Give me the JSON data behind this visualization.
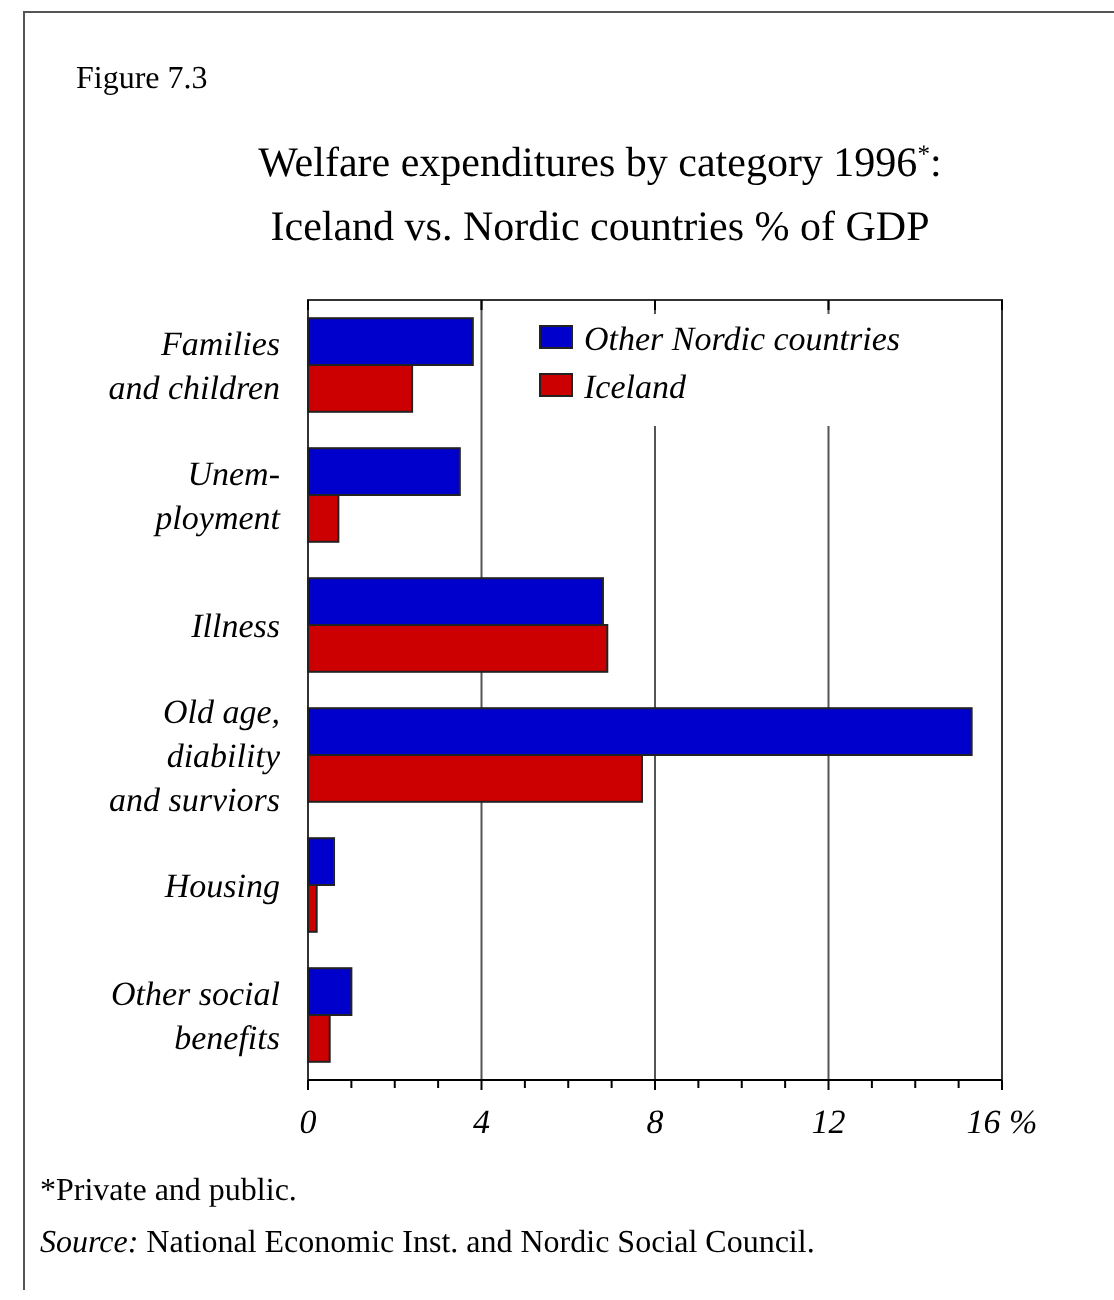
{
  "chart_data": {
    "type": "bar",
    "orientation": "horizontal",
    "title": "Welfare expenditures by category 1996$^{*}$:\nIceland vs. Nordic countries % of GDP",
    "categories": [
      "Families\nand children",
      "Unem-\nployment",
      "Illness",
      "Old age,\ndiability\nand surviors",
      "Housing",
      "Other social\nbenefits"
    ],
    "series": [
      {
        "name": "Other Nordic countries",
        "color": "#0000cc",
        "values": [
          3.8,
          3.5,
          6.8,
          15.3,
          0.6,
          1.0
        ]
      },
      {
        "name": "Iceland",
        "color": "#cc0000",
        "values": [
          2.4,
          0.7,
          6.9,
          7.7,
          0.2,
          0.5
        ]
      }
    ],
    "xlim": [
      0,
      16
    ],
    "xticks": [
      0,
      {
        "value": 1,
        "label": null
      },
      {
        "value": 2,
        "label": null
      },
      {
        "value": 3,
        "label": null
      },
      4,
      {
        "value": 5,
        "label": null
      },
      {
        "value": 6,
        "label": null
      },
      {
        "value": 7,
        "label": null
      },
      8,
      {
        "value": 9,
        "label": null
      },
      {
        "value": 10,
        "label": null
      },
      {
        "value": 11,
        "label": null
      },
      12,
      {
        "value": 13,
        "label": null
      },
      {
        "value": 14,
        "label": null
      },
      {
        "value": 15,
        "label": null
      },
      {
        "value": 16,
        "label": "16 %"
      }
    ],
    "grid": "x",
    "legend": "top right",
    "annotations": [
      "Figure 7.3",
      "*Private and public.",
      "Source: National Economic Inst. and Nordic Social Council."
    ]
  }
}
